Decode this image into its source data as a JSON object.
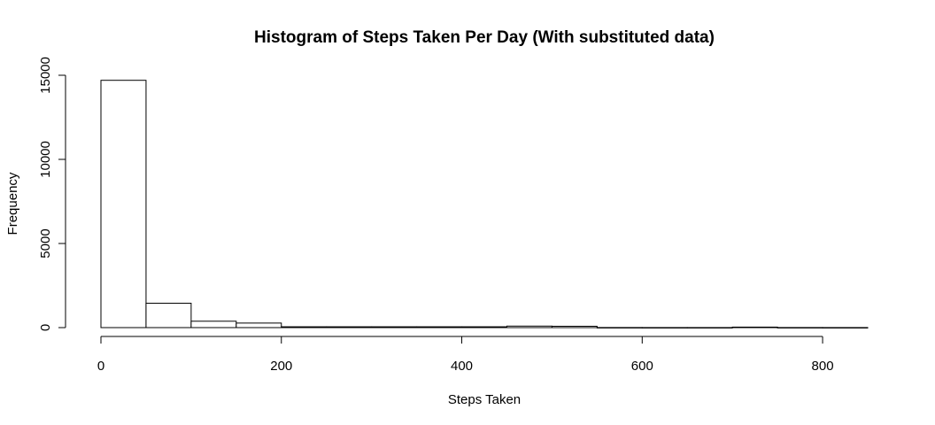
{
  "chart_data": {
    "type": "bar",
    "title": "Histogram of Steps Taken Per Day (With substituted data)",
    "xlabel": "Steps Taken",
    "ylabel": "Frequency",
    "bins": [
      {
        "x0": 0,
        "x1": 50,
        "value": 14700
      },
      {
        "x0": 50,
        "x1": 100,
        "value": 1450
      },
      {
        "x0": 100,
        "x1": 150,
        "value": 380
      },
      {
        "x0": 150,
        "x1": 200,
        "value": 270
      },
      {
        "x0": 200,
        "x1": 250,
        "value": 50
      },
      {
        "x0": 250,
        "x1": 300,
        "value": 50
      },
      {
        "x0": 300,
        "x1": 350,
        "value": 50
      },
      {
        "x0": 350,
        "x1": 400,
        "value": 50
      },
      {
        "x0": 400,
        "x1": 450,
        "value": 50
      },
      {
        "x0": 450,
        "x1": 500,
        "value": 90
      },
      {
        "x0": 500,
        "x1": 550,
        "value": 80
      },
      {
        "x0": 550,
        "x1": 600,
        "value": 5
      },
      {
        "x0": 600,
        "x1": 650,
        "value": 3
      },
      {
        "x0": 650,
        "x1": 700,
        "value": 3
      },
      {
        "x0": 700,
        "x1": 750,
        "value": 30
      },
      {
        "x0": 750,
        "x1": 800,
        "value": 5
      },
      {
        "x0": 800,
        "x1": 850,
        "value": 3
      }
    ],
    "xlim": [
      0,
      850
    ],
    "ylim": [
      0,
      15000
    ],
    "x_ticks": [
      0,
      200,
      400,
      600,
      800
    ],
    "y_ticks": [
      0,
      5000,
      10000,
      15000
    ],
    "grid": false,
    "bar_fill": "#ffffff",
    "bar_stroke": "#000000"
  }
}
